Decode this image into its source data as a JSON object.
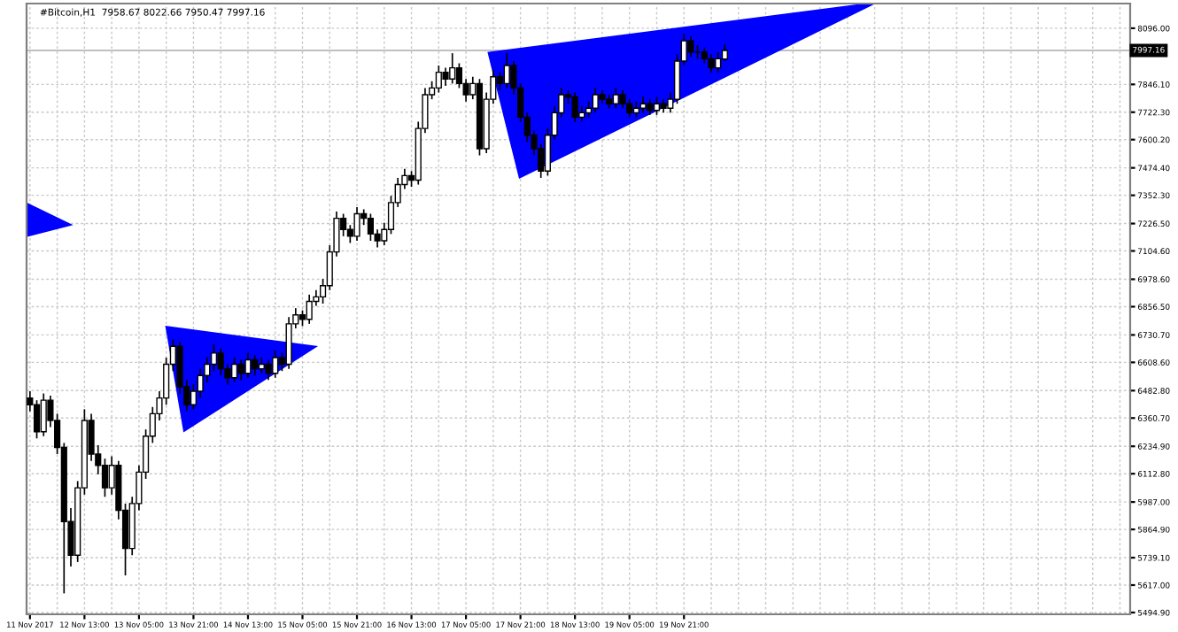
{
  "chart_data": {
    "type": "candlestick",
    "title": "#Bitcoin,H1  7958.67 8022.66 7950.47 7997.16",
    "categories": [
      "11 Nov 2017",
      null,
      null,
      null,
      null,
      null,
      null,
      null,
      "12 Nov 13:00",
      null,
      null,
      null,
      null,
      null,
      null,
      null,
      "13 Nov 05:00",
      null,
      null,
      null,
      null,
      null,
      null,
      null,
      "13 Nov 21:00",
      null,
      null,
      null,
      null,
      null,
      null,
      null,
      "14 Nov 13:00",
      null,
      null,
      null,
      null,
      null,
      null,
      null,
      "15 Nov 05:00",
      null,
      null,
      null,
      null,
      null,
      null,
      null,
      "15 Nov 21:00",
      null,
      null,
      null,
      null,
      null,
      null,
      null,
      "16 Nov 13:00",
      null,
      null,
      null,
      null,
      null,
      null,
      null,
      "17 Nov 05:00",
      null,
      null,
      null,
      null,
      null,
      null,
      null,
      "17 Nov 21:00",
      null,
      null,
      null,
      null,
      null,
      null,
      null,
      "18 Nov 13:00",
      null,
      null,
      null,
      null,
      null,
      null,
      null,
      "19 Nov 05:00",
      null,
      null,
      null,
      null,
      null,
      null,
      null,
      "19 Nov 21:00",
      null,
      null,
      null,
      null,
      null,
      null,
      null,
      null,
      null,
      null,
      null,
      null,
      null,
      null,
      null,
      null,
      null,
      null,
      null,
      null,
      null,
      null,
      null,
      null,
      null,
      null,
      null,
      null,
      null,
      null,
      null,
      null,
      null,
      null,
      null,
      null,
      null,
      null,
      null,
      null,
      null,
      null,
      null,
      null,
      null,
      null,
      null,
      null,
      null,
      null,
      null,
      null,
      null,
      null,
      null,
      null,
      null,
      null,
      null,
      null,
      null,
      null,
      null,
      null,
      null
    ],
    "ohlc": [
      [
        6450,
        6480,
        6390,
        6420
      ],
      [
        6420,
        6440,
        6270,
        6300
      ],
      [
        6300,
        6470,
        6280,
        6440
      ],
      [
        6440,
        6460,
        6320,
        6350
      ],
      [
        6350,
        6380,
        6200,
        6230
      ],
      [
        6230,
        6250,
        5580,
        5900
      ],
      [
        5900,
        5960,
        5700,
        5750
      ],
      [
        5750,
        6080,
        5720,
        6050
      ],
      [
        6050,
        6400,
        6020,
        6350
      ],
      [
        6350,
        6380,
        6170,
        6200
      ],
      [
        6200,
        6240,
        6110,
        6150
      ],
      [
        6150,
        6180,
        6010,
        6050
      ],
      [
        6050,
        6190,
        6020,
        6150
      ],
      [
        6150,
        6170,
        5910,
        5950
      ],
      [
        5950,
        5980,
        5660,
        5780
      ],
      [
        5780,
        6010,
        5750,
        5980
      ],
      [
        5980,
        6150,
        5950,
        6120
      ],
      [
        6120,
        6310,
        6090,
        6280
      ],
      [
        6280,
        6410,
        6250,
        6380
      ],
      [
        6380,
        6480,
        6350,
        6450
      ],
      [
        6450,
        6630,
        6420,
        6600
      ],
      [
        6600,
        6710,
        6570,
        6680
      ],
      [
        6680,
        6700,
        6470,
        6500
      ],
      [
        6500,
        6530,
        6390,
        6420
      ],
      [
        6420,
        6510,
        6400,
        6480
      ],
      [
        6480,
        6580,
        6450,
        6550
      ],
      [
        6550,
        6630,
        6520,
        6600
      ],
      [
        6600,
        6690,
        6570,
        6650
      ],
      [
        6650,
        6670,
        6550,
        6580
      ],
      [
        6580,
        6600,
        6510,
        6540
      ],
      [
        6540,
        6630,
        6520,
        6600
      ],
      [
        6600,
        6620,
        6530,
        6560
      ],
      [
        6560,
        6650,
        6540,
        6620
      ],
      [
        6620,
        6640,
        6550,
        6580
      ],
      [
        6580,
        6630,
        6560,
        6600
      ],
      [
        6600,
        6620,
        6530,
        6560
      ],
      [
        6560,
        6660,
        6540,
        6630
      ],
      [
        6630,
        6650,
        6570,
        6600
      ],
      [
        6600,
        6810,
        6580,
        6780
      ],
      [
        6780,
        6850,
        6760,
        6820
      ],
      [
        6820,
        6840,
        6770,
        6800
      ],
      [
        6800,
        6910,
        6780,
        6880
      ],
      [
        6880,
        6930,
        6860,
        6900
      ],
      [
        6900,
        6980,
        6870,
        6950
      ],
      [
        6950,
        7130,
        6930,
        7100
      ],
      [
        7100,
        7280,
        7080,
        7250
      ],
      [
        7250,
        7270,
        7170,
        7200
      ],
      [
        7200,
        7220,
        7140,
        7170
      ],
      [
        7170,
        7300,
        7150,
        7270
      ],
      [
        7270,
        7290,
        7220,
        7250
      ],
      [
        7250,
        7270,
        7150,
        7180
      ],
      [
        7180,
        7200,
        7120,
        7150
      ],
      [
        7150,
        7230,
        7130,
        7200
      ],
      [
        7200,
        7350,
        7180,
        7320
      ],
      [
        7320,
        7430,
        7300,
        7400
      ],
      [
        7400,
        7470,
        7380,
        7440
      ],
      [
        7440,
        7460,
        7390,
        7420
      ],
      [
        7420,
        7680,
        7400,
        7650
      ],
      [
        7650,
        7830,
        7630,
        7800
      ],
      [
        7800,
        7860,
        7780,
        7830
      ],
      [
        7830,
        7930,
        7810,
        7900
      ],
      [
        7900,
        7920,
        7840,
        7870
      ],
      [
        7870,
        7985,
        7850,
        7920
      ],
      [
        7920,
        7940,
        7830,
        7850
      ],
      [
        7850,
        7870,
        7770,
        7800
      ],
      [
        7800,
        7880,
        7780,
        7850
      ],
      [
        7850,
        7870,
        7530,
        7560
      ],
      [
        7560,
        7810,
        7540,
        7780
      ],
      [
        7780,
        7910,
        7760,
        7880
      ],
      [
        7880,
        7900,
        7820,
        7850
      ],
      [
        7850,
        7985,
        7830,
        7930
      ],
      [
        7930,
        7950,
        7800,
        7830
      ],
      [
        7830,
        7850,
        7680,
        7700
      ],
      [
        7700,
        7720,
        7590,
        7620
      ],
      [
        7620,
        7640,
        7530,
        7560
      ],
      [
        7560,
        7580,
        7430,
        7460
      ],
      [
        7460,
        7650,
        7440,
        7620
      ],
      [
        7620,
        7750,
        7600,
        7720
      ],
      [
        7720,
        7830,
        7700,
        7800
      ],
      [
        7800,
        7820,
        7760,
        7790
      ],
      [
        7790,
        7810,
        7680,
        7700
      ],
      [
        7700,
        7750,
        7680,
        7720
      ],
      [
        7720,
        7770,
        7700,
        7740
      ],
      [
        7740,
        7830,
        7720,
        7800
      ],
      [
        7800,
        7820,
        7760,
        7780
      ],
      [
        7780,
        7800,
        7740,
        7760
      ],
      [
        7760,
        7830,
        7740,
        7800
      ],
      [
        7800,
        7820,
        7740,
        7760
      ],
      [
        7760,
        7780,
        7700,
        7720
      ],
      [
        7720,
        7770,
        7700,
        7740
      ],
      [
        7740,
        7790,
        7720,
        7760
      ],
      [
        7760,
        7780,
        7710,
        7730
      ],
      [
        7730,
        7790,
        7710,
        7760
      ],
      [
        7760,
        7780,
        7720,
        7740
      ],
      [
        7740,
        7810,
        7720,
        7780
      ],
      [
        7780,
        7980,
        7760,
        7950
      ],
      [
        7950,
        8070,
        7930,
        8040
      ],
      [
        8040,
        8060,
        7970,
        7990
      ],
      [
        7990,
        8020,
        7960,
        7990
      ],
      [
        7990,
        8010,
        7940,
        7960
      ],
      [
        7960,
        7980,
        7900,
        7920
      ],
      [
        7920,
        7990,
        7900,
        7960
      ],
      [
        7958.67,
        8022.66,
        7950.47,
        7997.16
      ],
      null,
      null,
      null,
      null,
      null,
      null,
      null,
      null,
      null,
      null,
      null,
      null,
      null,
      null,
      null,
      null,
      null,
      null,
      null,
      null,
      null,
      null,
      null,
      null,
      null,
      null,
      null,
      null,
      null,
      null,
      null,
      null,
      null,
      null,
      null,
      null,
      null,
      null,
      null,
      null,
      null,
      null,
      null,
      null,
      null,
      null,
      null,
      null,
      null,
      null,
      null,
      null,
      null,
      null,
      null,
      null,
      null,
      null,
      null
    ],
    "ylim": [
      5487,
      8206
    ],
    "yticks": [
      {
        "value": 5494.9,
        "label": "5494.90"
      },
      {
        "value": 5617,
        "label": "5617.00"
      },
      {
        "value": 5739.1,
        "label": "5739.10"
      },
      {
        "value": 5864.9,
        "label": "5864.90"
      },
      {
        "value": 5987,
        "label": "5987.00"
      },
      {
        "value": 6112.8,
        "label": "6112.80"
      },
      {
        "value": 6234.9,
        "label": "6234.90"
      },
      {
        "value": 6360.7,
        "label": "6360.70"
      },
      {
        "value": 6482.8,
        "label": "6482.80"
      },
      {
        "value": 6608.6,
        "label": "6608.60"
      },
      {
        "value": 6730.7,
        "label": "6730.70"
      },
      {
        "value": 6856.5,
        "label": "6856.50"
      },
      {
        "value": 6978.6,
        "label": "6978.60"
      },
      {
        "value": 7104.6,
        "label": "7104.60"
      },
      {
        "value": 7226.5,
        "label": "7226.50"
      },
      {
        "value": 7352.3,
        "label": "7352.30"
      },
      {
        "value": 7474.4,
        "label": "7474.40"
      },
      {
        "value": 7600.2,
        "label": "7600.20"
      },
      {
        "value": 7722.3,
        "label": "7722.30"
      },
      {
        "value": 7846.1,
        "label": "7846.10"
      },
      {
        "value": 8096,
        "label": "8096.00"
      }
    ],
    "ref_lines": [
      {
        "axis": "y",
        "value": 7997.16,
        "label": "7997.16",
        "color": "#c0c0c0"
      }
    ],
    "grid": true
  }
}
